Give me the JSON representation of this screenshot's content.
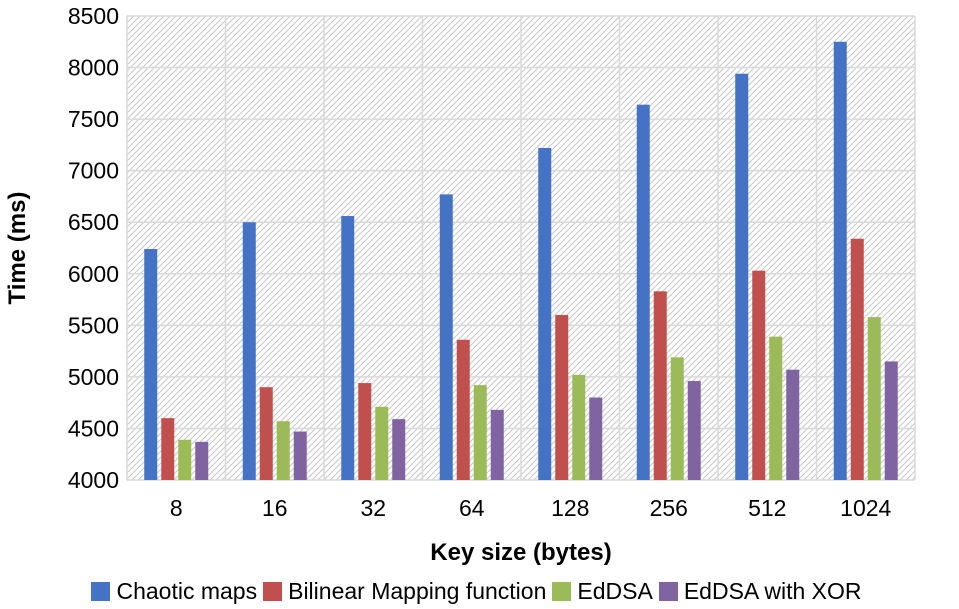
{
  "chart_data": {
    "type": "bar",
    "title": "",
    "xlabel": "Key size (bytes)",
    "ylabel": "Time (ms)",
    "ylim": [
      4000,
      8500
    ],
    "yticks": [
      4000,
      4500,
      5000,
      5500,
      6000,
      6500,
      7000,
      7500,
      8000,
      8500
    ],
    "grid": true,
    "legend_position": "bottom",
    "categories": [
      "8",
      "16",
      "32",
      "64",
      "128",
      "256",
      "512",
      "1024"
    ],
    "series": [
      {
        "name": "Chaotic maps",
        "color": "#4472C4",
        "values": [
          6240,
          6500,
          6560,
          6770,
          7220,
          7640,
          7940,
          8250
        ]
      },
      {
        "name": "Bilinear Mapping function",
        "color": "#C0504D",
        "values": [
          4600,
          4900,
          4940,
          5360,
          5600,
          5830,
          6030,
          6340
        ]
      },
      {
        "name": "EdDSA",
        "color": "#9BBB59",
        "values": [
          4390,
          4570,
          4710,
          4920,
          5020,
          5190,
          5390,
          5580
        ]
      },
      {
        "name": "EdDSA with XOR",
        "color": "#8064A2",
        "values": [
          4370,
          4470,
          4590,
          4680,
          4800,
          4960,
          5070,
          5150
        ]
      }
    ]
  }
}
